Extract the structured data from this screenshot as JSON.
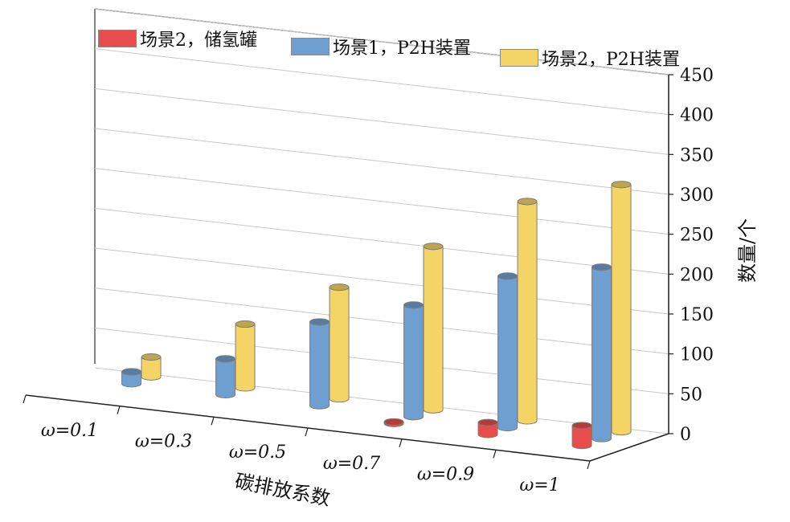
{
  "legend": [
    {
      "label": "场景2，储氢罐",
      "color": "#e84c4c"
    },
    {
      "label": "场景1，P2H装置",
      "color": "#6f9ed1"
    },
    {
      "label": "场景2，P2H装置",
      "color": "#f3d465"
    }
  ],
  "chart_data": {
    "type": "bar",
    "title": "",
    "xlabel": "碳排放系数",
    "ylabel": "数量/个",
    "categories": [
      "ω=0.1",
      "ω=0.3",
      "ω=0.5",
      "ω=0.7",
      "ω=0.9",
      "ω=1"
    ],
    "series": [
      {
        "name": "场景2，储氢罐",
        "color": "#e84c4c",
        "values": [
          0,
          0,
          0,
          2,
          15,
          25
        ]
      },
      {
        "name": "场景1，P2H装置",
        "color": "#6f9ed1",
        "values": [
          15,
          45,
          105,
          140,
          190,
          215
        ]
      },
      {
        "name": "场景2，P2H装置",
        "color": "#f3d465",
        "values": [
          25,
          80,
          140,
          205,
          275,
          310
        ]
      }
    ],
    "ylim": [
      0,
      450
    ],
    "yticks": [
      0,
      50,
      100,
      150,
      200,
      250,
      300,
      350,
      400,
      450
    ],
    "grid": true,
    "legend_position": "top"
  }
}
